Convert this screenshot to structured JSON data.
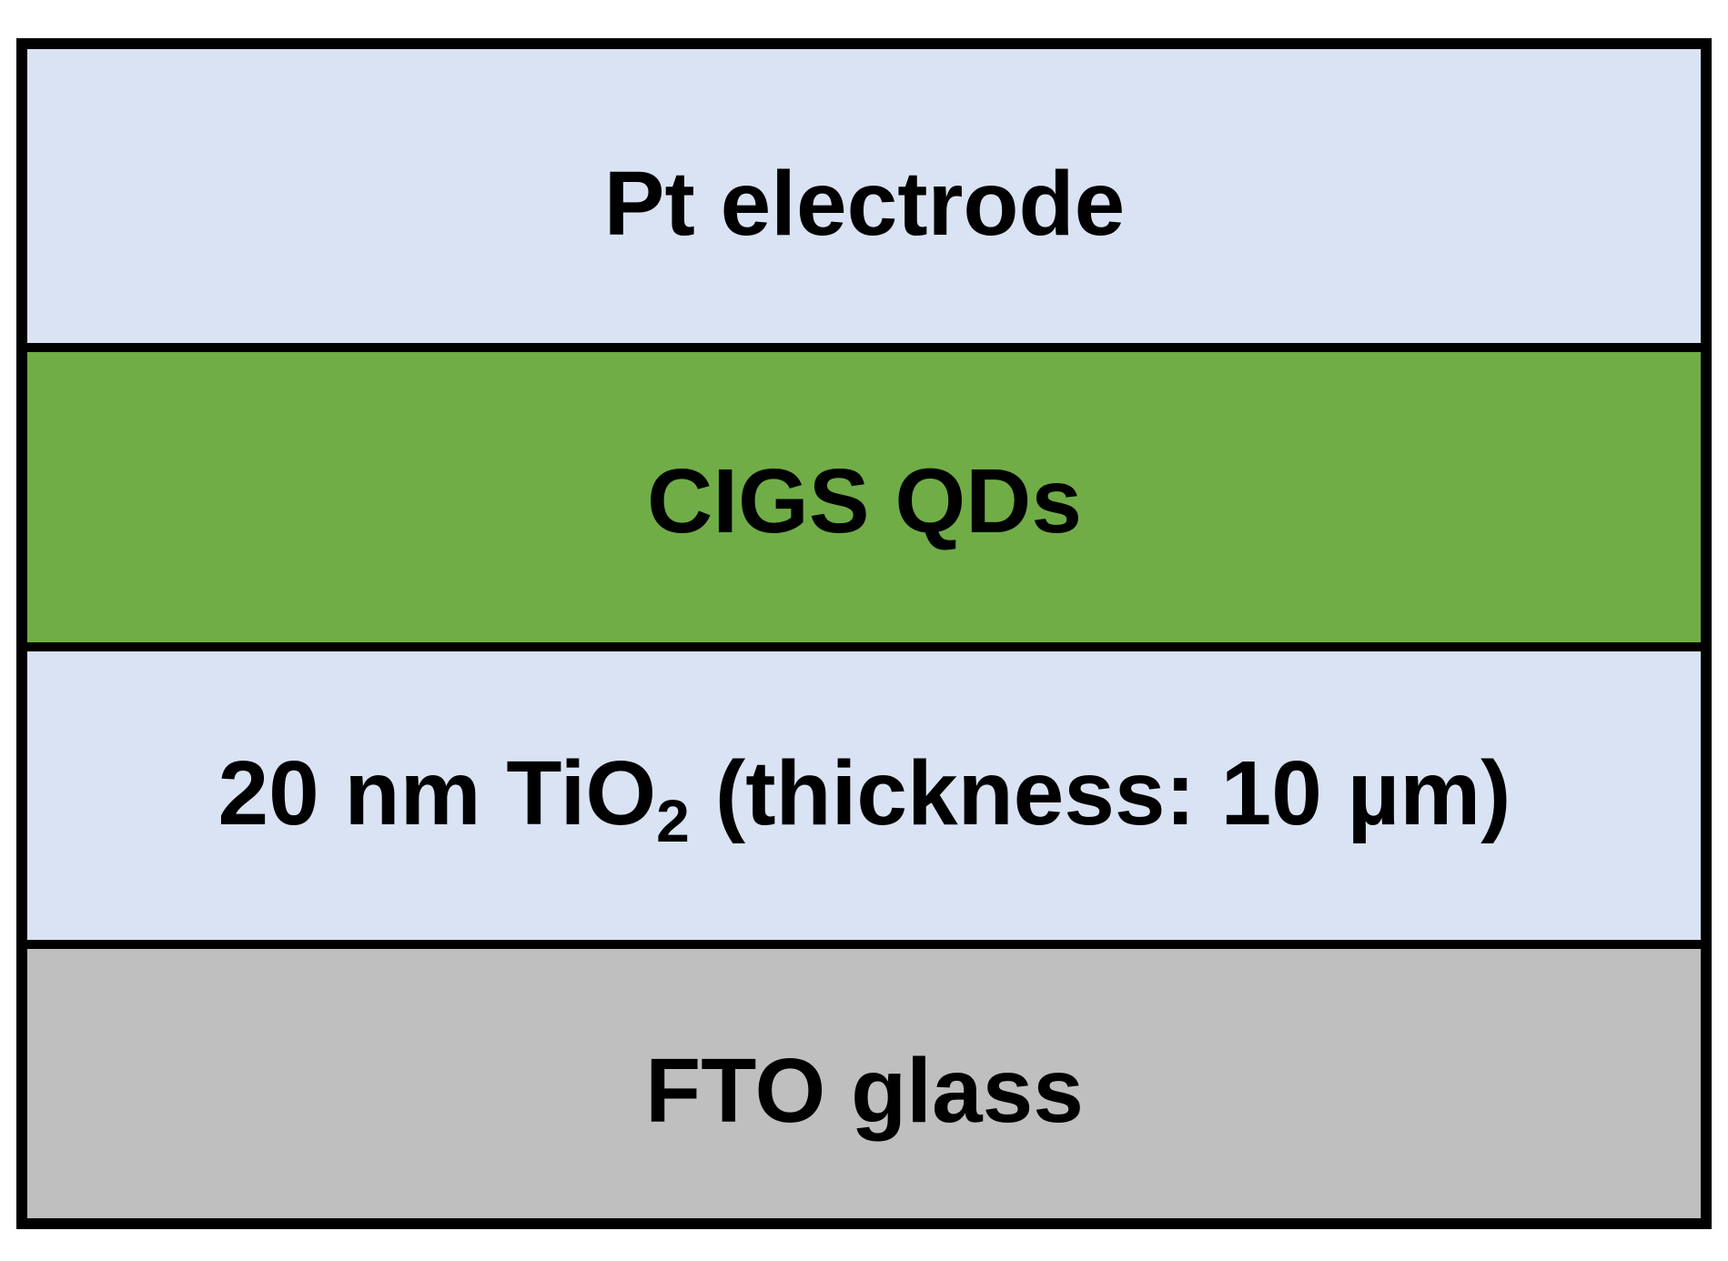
{
  "layers": [
    {
      "label": "Pt electrode"
    },
    {
      "label": "CIGS QDs"
    },
    {
      "label_parts": [
        "20 nm TiO",
        "2",
        "(thickness: 10 µm)"
      ]
    },
    {
      "label": "FTO glass"
    }
  ]
}
